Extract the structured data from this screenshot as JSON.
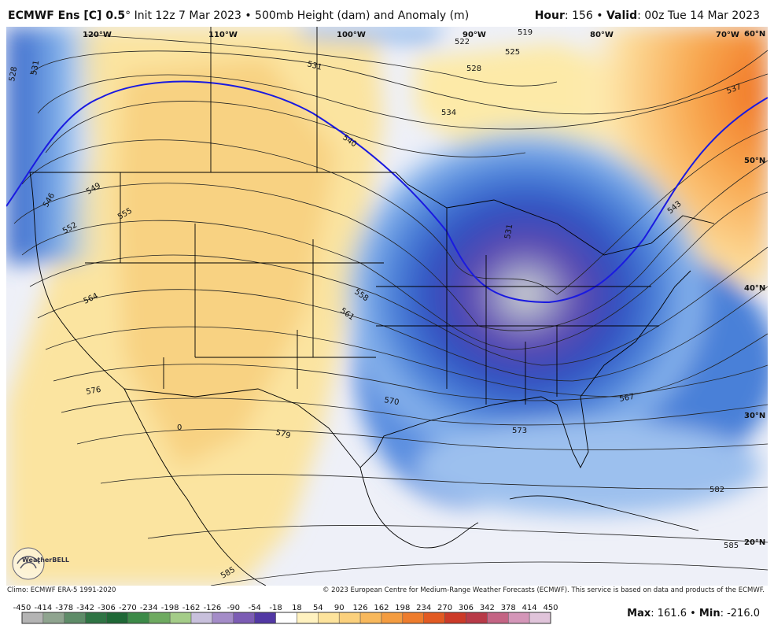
{
  "header": {
    "model": "ECMWF Ens [C] 0.5",
    "description": "° Init 12z 7 Mar 2023 • 500mb Height (dam) and Anomaly (m)",
    "hour_label": "Hour",
    "hour_value": ": 156 • ",
    "valid_label": "Valid",
    "valid_value": ": 00z Tue 14 Mar 2023"
  },
  "longitude_labels": [
    "120°W",
    "110°W",
    "100°W",
    "90°W",
    "80°W",
    "70°W"
  ],
  "latitude_labels": [
    "60°N",
    "50°N",
    "40°N",
    "30°N",
    "20°N"
  ],
  "contour_labels": [
    "528",
    "531",
    "531",
    "522",
    "519",
    "525",
    "528",
    "534",
    "537",
    "540",
    "543",
    "546",
    "549",
    "552",
    "555",
    "531",
    "558",
    "561",
    "564",
    "567",
    "570",
    "573",
    "576",
    "579",
    "582",
    "585",
    "585",
    "0"
  ],
  "logo": "WeatherBELL",
  "footer": {
    "climo": "Climo: ECMWF ERA-5 1991-2020",
    "copyright": "© 2023 European Centre for Medium-Range Weather Forecasts (ECMWF). This service is based on data and products of the ECMWF.",
    "max_label": "Max",
    "max_value": ": 161.6 • ",
    "min_label": "Min",
    "min_value": ": -216.0"
  },
  "colorbar": {
    "ticks": [
      "-450",
      "-414",
      "-378",
      "-342",
      "-306",
      "-270",
      "-234",
      "-198",
      "-162",
      "-126",
      "-90",
      "-54",
      "-18",
      "18",
      "54",
      "90",
      "126",
      "162",
      "198",
      "234",
      "270",
      "306",
      "342",
      "378",
      "414",
      "450"
    ],
    "colors": [
      "#b4b4b4",
      "#8fa48f",
      "#5e8c68",
      "#2f7444",
      "#1f6836",
      "#3c8a48",
      "#6eaa60",
      "#a4cc88",
      "#c8c0dc",
      "#a48cc8",
      "#7c5cb4",
      "#5238a4",
      "#ffffff",
      "#fff2c0",
      "#fde39c",
      "#fbd07c",
      "#f8b85c",
      "#f49c40",
      "#ee7c2c",
      "#e25a22",
      "#cc3a28",
      "#b83a48",
      "#c46484",
      "#d496b8",
      "#e0c4da"
    ]
  }
}
